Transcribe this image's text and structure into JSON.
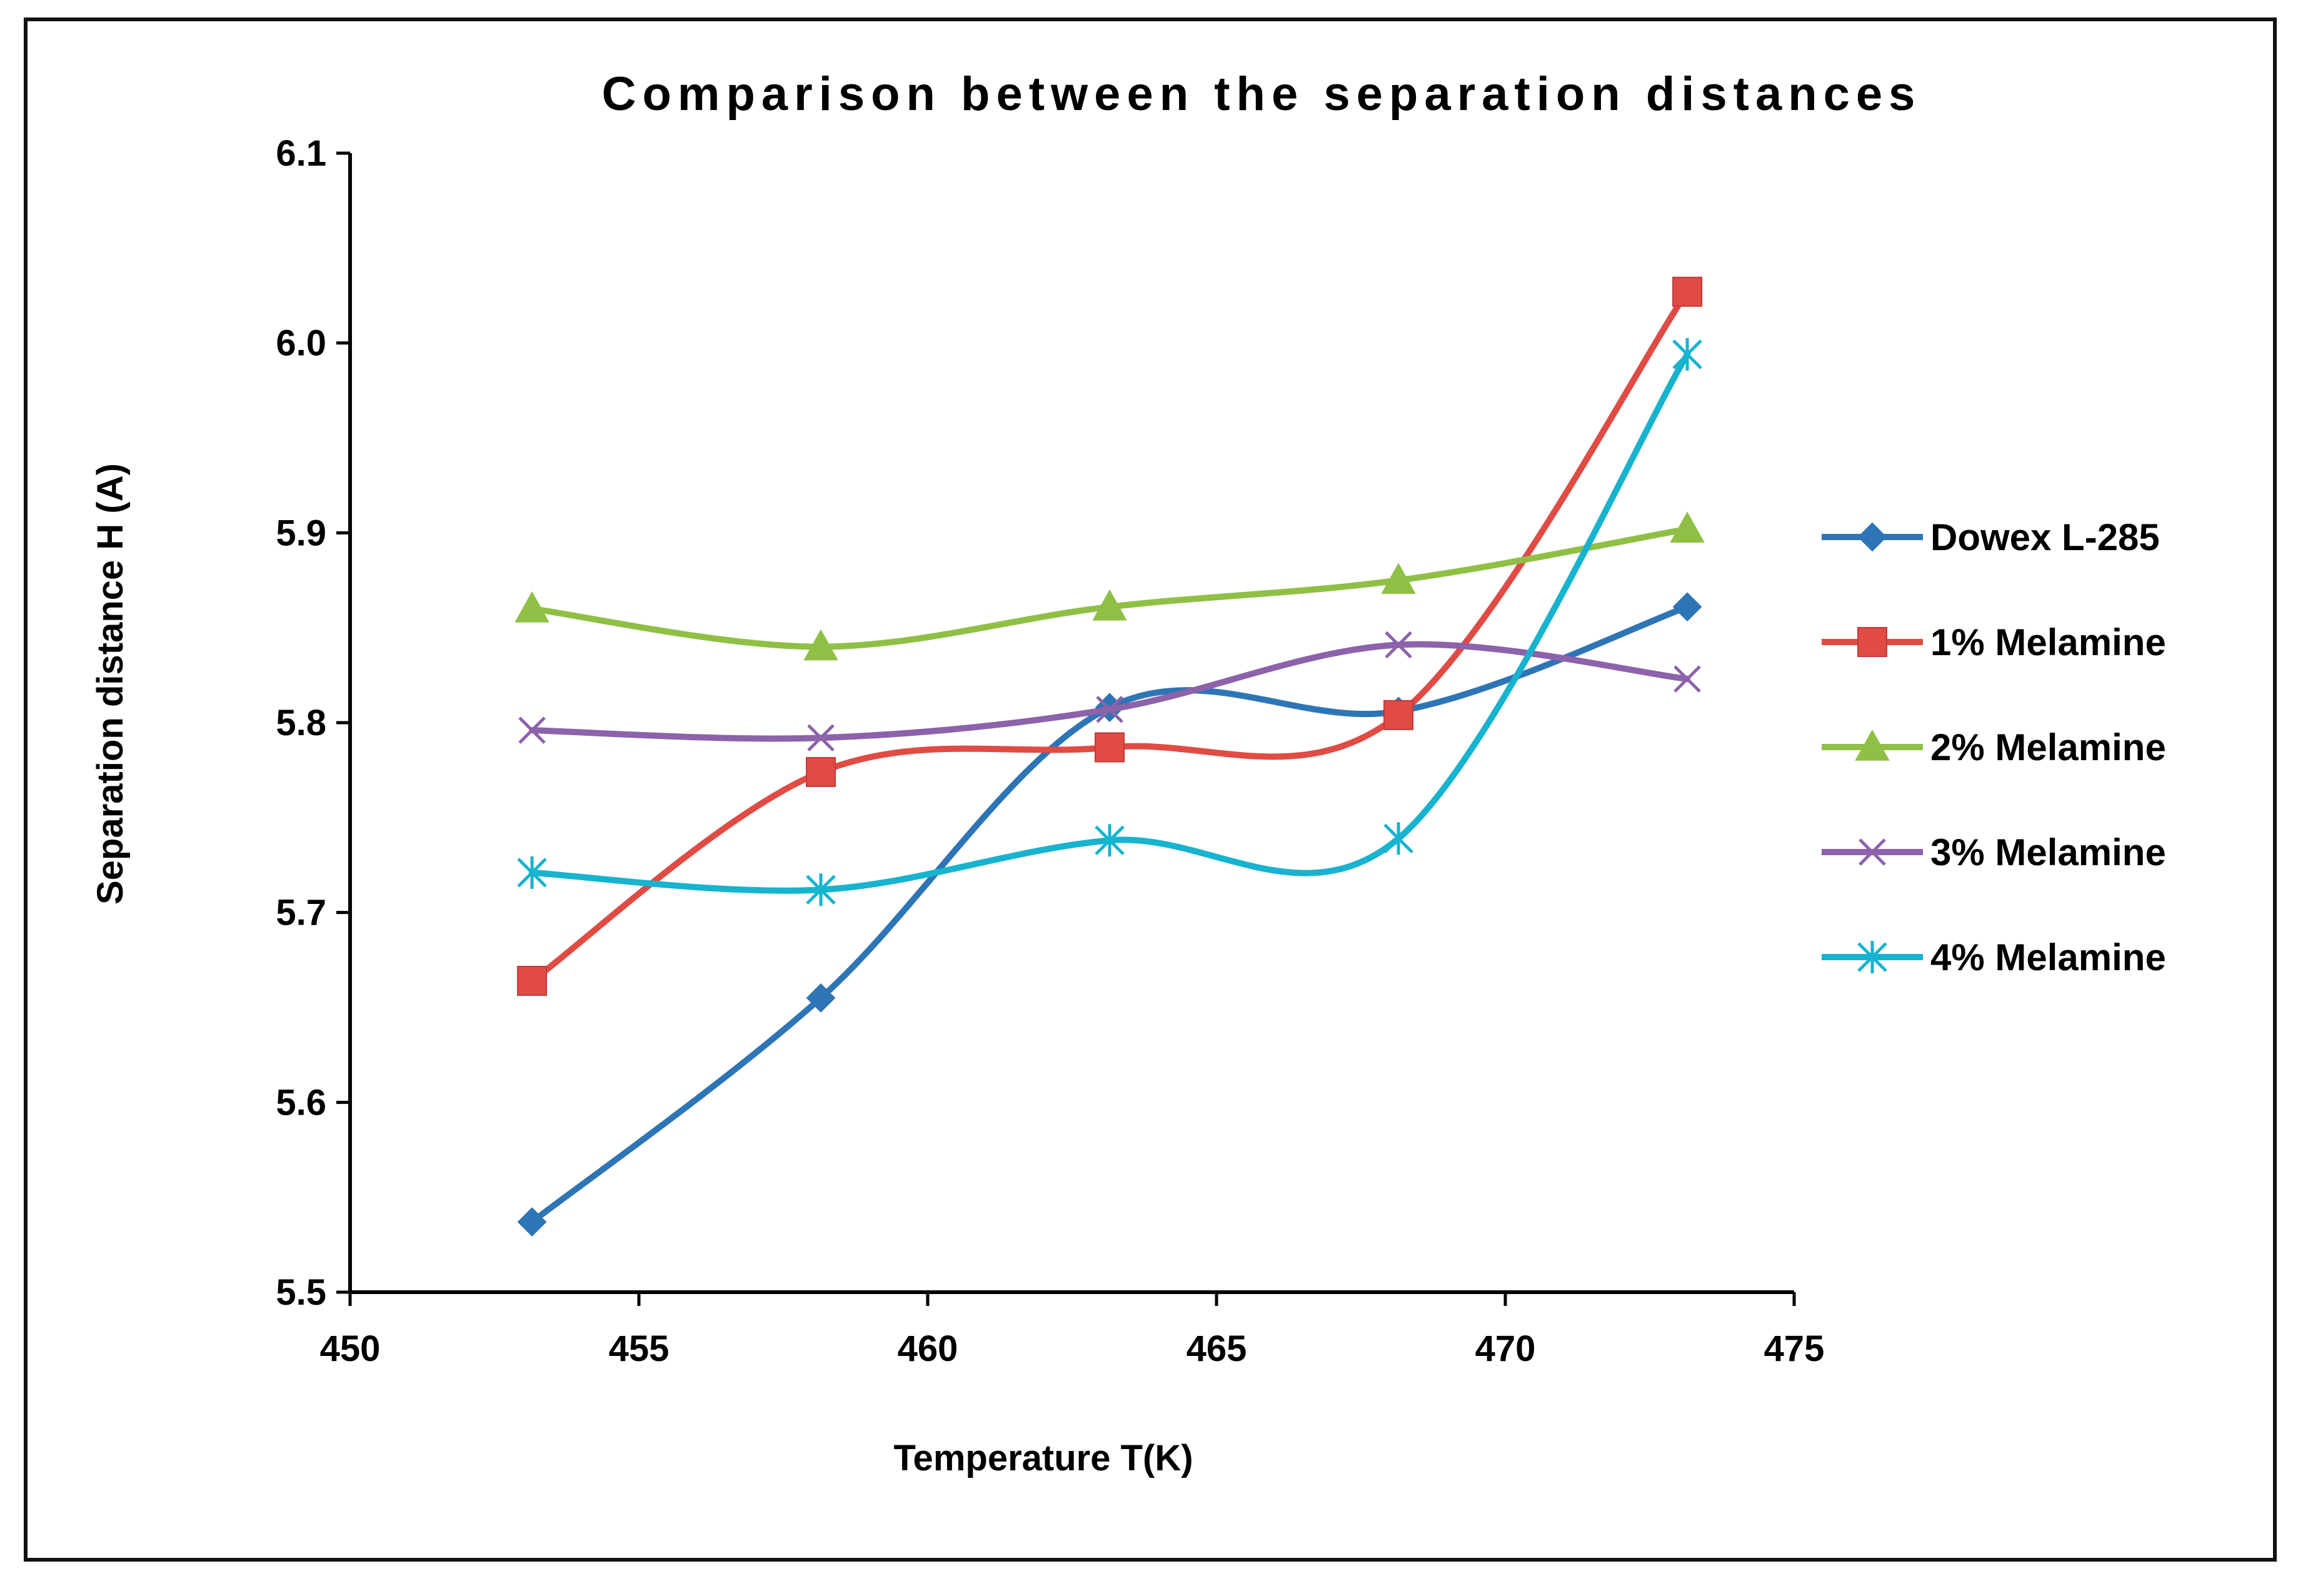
{
  "chart_data": {
    "type": "line",
    "title": "Comparison between the separation distances",
    "xlabel": "Temperature T(K)",
    "ylabel": "Separation distance H (A)",
    "xlim": [
      450,
      475
    ],
    "ylim": [
      5.5,
      6.1
    ],
    "x_ticks": [
      "450",
      "455",
      "460",
      "465",
      "470",
      "475"
    ],
    "y_ticks": [
      "5.5",
      "5.6",
      "5.7",
      "5.8",
      "5.9",
      "6.0",
      "6.1"
    ],
    "grid": false,
    "legend_position": "right",
    "x": [
      453.15,
      458.15,
      463.15,
      468.15,
      473.15
    ],
    "series": [
      {
        "name": "Dowex L-285",
        "color": "#2E75B6",
        "marker": "diamond",
        "values": [
          5.537,
          5.655,
          5.808,
          5.806,
          5.861
        ]
      },
      {
        "name": "1% Melamine",
        "color": "#E04B44",
        "marker": "square",
        "values": [
          5.664,
          5.774,
          5.787,
          5.804,
          6.027
        ]
      },
      {
        "name": "2% Melamine",
        "color": "#8FC045",
        "marker": "triangle",
        "values": [
          5.86,
          5.84,
          5.861,
          5.875,
          5.902
        ]
      },
      {
        "name": "3% Melamine",
        "color": "#8C62AA",
        "marker": "x",
        "values": [
          5.796,
          5.792,
          5.807,
          5.841,
          5.823
        ]
      },
      {
        "name": "4% Melamine",
        "color": "#17B3CF",
        "marker": "star",
        "values": [
          5.721,
          5.712,
          5.738,
          5.739,
          5.994
        ]
      }
    ]
  }
}
